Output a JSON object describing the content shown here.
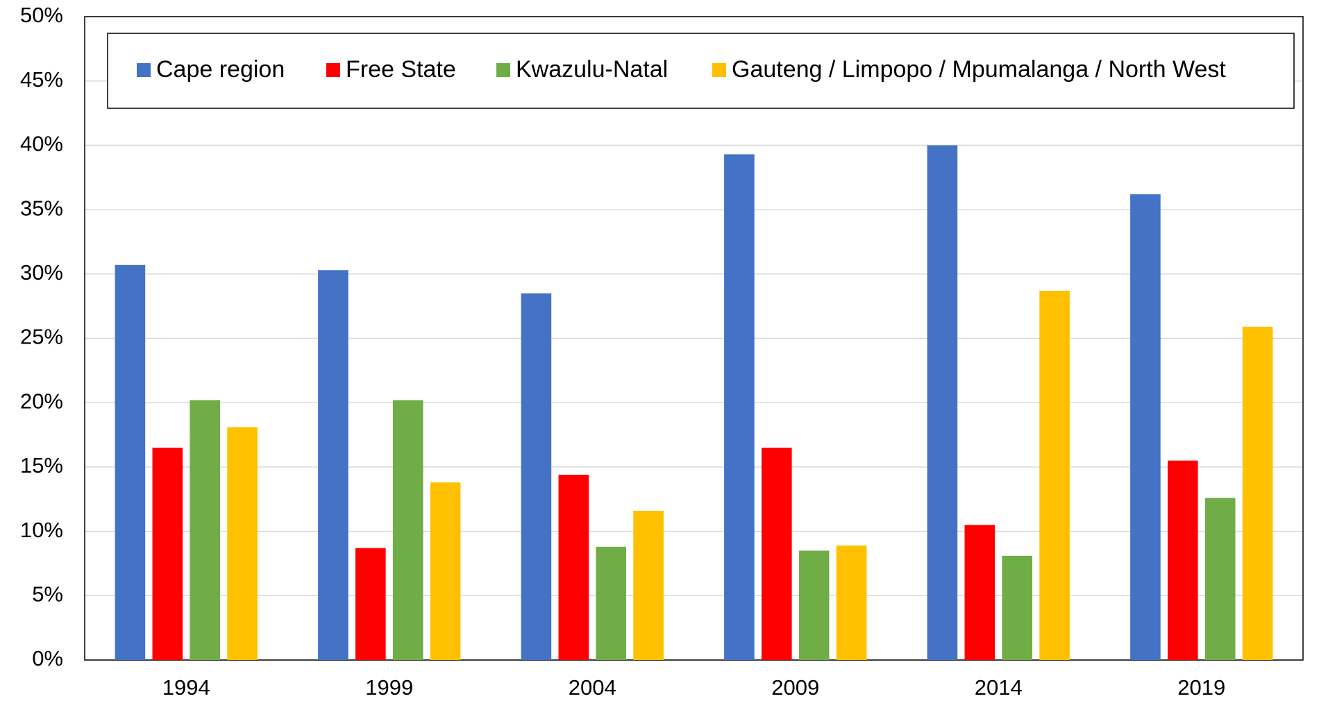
{
  "chart_data": {
    "type": "bar",
    "categories": [
      "1994",
      "1999",
      "2004",
      "2009",
      "2014",
      "2019"
    ],
    "series": [
      {
        "name": "Cape region",
        "color": "#4472c4",
        "values": [
          30.7,
          30.3,
          28.5,
          39.3,
          40.0,
          36.2
        ]
      },
      {
        "name": "Free State",
        "color": "#ff0000",
        "values": [
          16.5,
          8.7,
          14.4,
          16.5,
          10.5,
          15.5
        ]
      },
      {
        "name": "Kwazulu-Natal",
        "color": "#70ad47",
        "values": [
          20.2,
          20.2,
          8.8,
          8.5,
          8.1,
          12.6
        ]
      },
      {
        "name": "Gauteng / Limpopo / Mpumalanga / North West",
        "color": "#ffc000",
        "values": [
          18.1,
          13.8,
          11.6,
          8.9,
          28.7,
          25.9
        ]
      }
    ],
    "ylim": [
      0,
      50
    ],
    "yticks": [
      {
        "value": 0,
        "label": "0%"
      },
      {
        "value": 5,
        "label": "5%"
      },
      {
        "value": 10,
        "label": "10%"
      },
      {
        "value": 15,
        "label": "15%"
      },
      {
        "value": 20,
        "label": "20%"
      },
      {
        "value": 25,
        "label": "25%"
      },
      {
        "value": 30,
        "label": "30%"
      },
      {
        "value": 35,
        "label": "35%"
      },
      {
        "value": 40,
        "label": "40%"
      },
      {
        "value": 45,
        "label": "45%"
      },
      {
        "value": 50,
        "label": "50%"
      }
    ],
    "grid": true,
    "legend": "top"
  }
}
